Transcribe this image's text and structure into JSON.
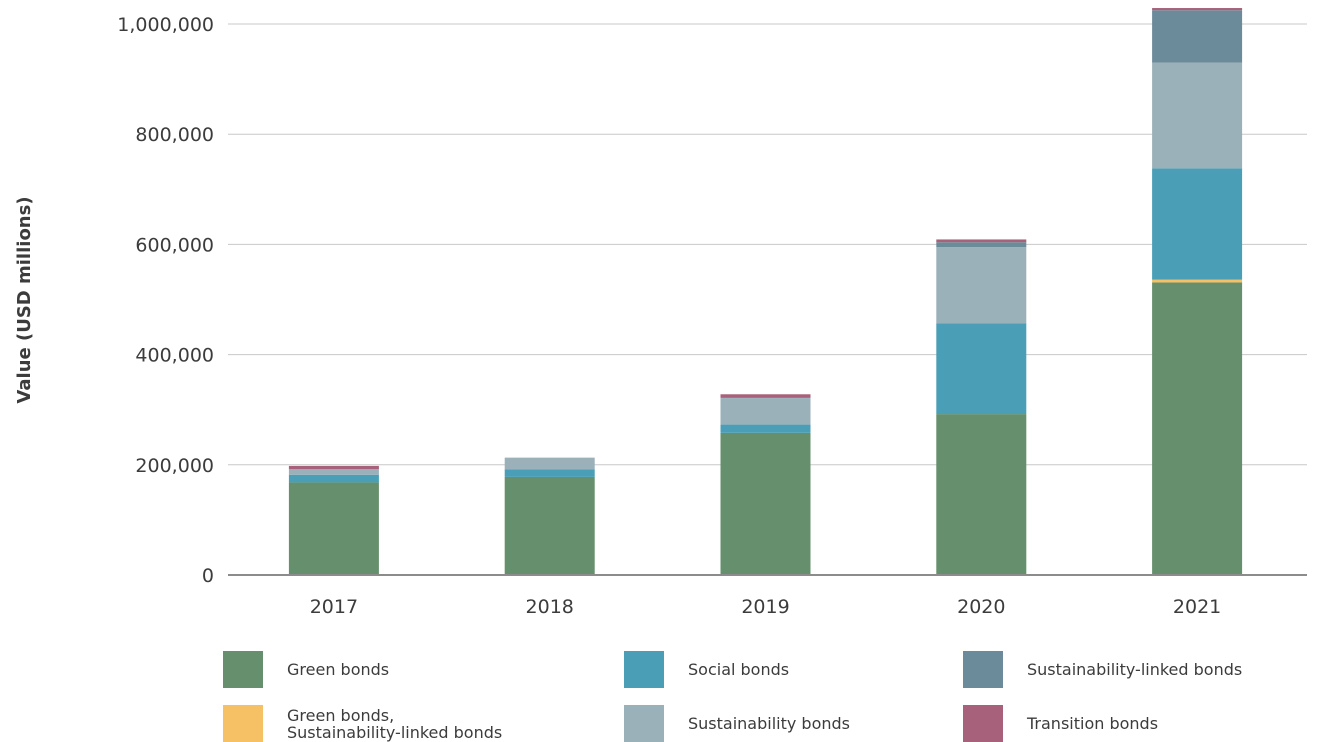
{
  "chart_data": {
    "type": "bar",
    "stacked": true,
    "title": "",
    "xlabel": "",
    "ylabel": "Value (USD millions)",
    "ylim": [
      0,
      1000000
    ],
    "yticks": [
      0,
      200000,
      400000,
      600000,
      800000,
      1000000
    ],
    "ytick_labels": [
      "0",
      "200,000",
      "400,000",
      "600,000",
      "800,000",
      "1,000,000"
    ],
    "grid": true,
    "legend_position": "bottom",
    "categories": [
      "2017",
      "2018",
      "2019",
      "2020",
      "2021"
    ],
    "series": [
      {
        "name": "Green bonds",
        "color": "#66906d",
        "values": [
          168000,
          178000,
          258000,
          292000,
          531000
        ]
      },
      {
        "name": "Green bonds,\nSustainability-linked bonds",
        "color": "#f5c164",
        "values": [
          0,
          0,
          0,
          0,
          5000
        ]
      },
      {
        "name": "Social bonds",
        "color": "#4a9fb6",
        "values": [
          14000,
          14000,
          15000,
          165000,
          202000
        ]
      },
      {
        "name": "Sustainability bonds",
        "color": "#9ab1b9",
        "values": [
          10000,
          21000,
          48000,
          138000,
          192000
        ]
      },
      {
        "name": "Sustainability-linked bonds",
        "color": "#6c8b9a",
        "values": [
          0,
          0,
          2000,
          9000,
          95000
        ]
      },
      {
        "name": "Transition bonds",
        "color": "#a8617a",
        "values": [
          6000,
          0,
          5000,
          5000,
          4000
        ]
      }
    ]
  }
}
